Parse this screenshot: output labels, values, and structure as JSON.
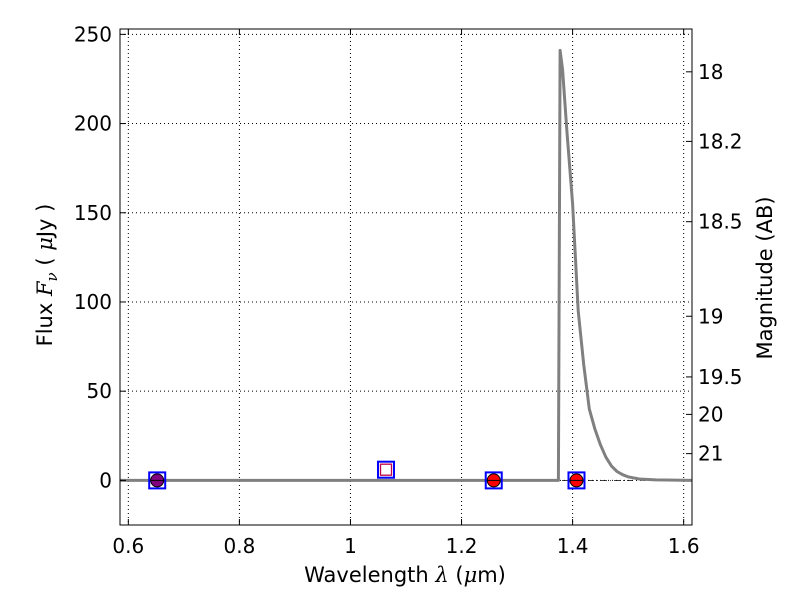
{
  "chart_data": {
    "type": "line",
    "title": "",
    "xlabel": "Wavelength  λ (μm)",
    "ylabel": "Flux  Fν  ( μJy )",
    "ylabel_right": "Magnitude (AB)",
    "xlim": [
      0.585,
      1.615
    ],
    "ylim": [
      -25,
      253
    ],
    "grid": true,
    "x_ticks": [
      0.6,
      0.8,
      1.0,
      1.2,
      1.4,
      1.6
    ],
    "x_tick_labels": [
      "0.6",
      "0.8",
      "1",
      "1.2",
      "1.4",
      "1.6"
    ],
    "y_ticks": [
      0,
      50,
      100,
      150,
      200,
      250
    ],
    "y_tick_labels": [
      "0",
      "50",
      "100",
      "150",
      "200",
      "250"
    ],
    "right_axis_ticks": [
      {
        "label": "18",
        "flux": 229
      },
      {
        "label": "18.2",
        "flux": 190
      },
      {
        "label": "18.5",
        "flux": 145
      },
      {
        "label": "19",
        "flux": 92
      },
      {
        "label": "19.5",
        "flux": 58
      },
      {
        "label": "20",
        "flux": 37
      },
      {
        "label": "21",
        "flux": 15
      }
    ],
    "series": [
      {
        "color": "#808080",
        "x": [
          0.585,
          1.3745,
          1.3775,
          1.382,
          1.39,
          1.4,
          1.41,
          1.42,
          1.43,
          1.44,
          1.45,
          1.46,
          1.47,
          1.48,
          1.49,
          1.5,
          1.52,
          1.55,
          1.6,
          1.615
        ],
        "y": [
          0,
          0,
          241,
          230,
          195,
          155,
          95,
          65,
          40,
          29,
          20,
          13,
          8,
          5,
          3.2,
          2,
          0.8,
          0.3,
          0.05,
          0
        ]
      }
    ],
    "reference_line": {
      "y": 0,
      "style": "dashdot"
    },
    "markers": {
      "squares": [
        {
          "x": 0.652,
          "y": 0,
          "edge": "#0000ff"
        },
        {
          "x": 1.064,
          "y": 6,
          "edge": "#0000ff"
        },
        {
          "x": 1.258,
          "y": 0,
          "edge": "#0000ff"
        },
        {
          "x": 1.407,
          "y": 0,
          "edge": "#0000ff"
        }
      ],
      "inner_squares": [
        {
          "x": 1.064,
          "y": 6,
          "edge": "#c0004a"
        }
      ],
      "circles": [
        {
          "x": 0.652,
          "y": 0,
          "fill": "#800080"
        },
        {
          "x": 1.258,
          "y": 0,
          "fill": "#ff0000"
        },
        {
          "x": 1.407,
          "y": 0,
          "fill": "#ff0000"
        }
      ]
    }
  }
}
